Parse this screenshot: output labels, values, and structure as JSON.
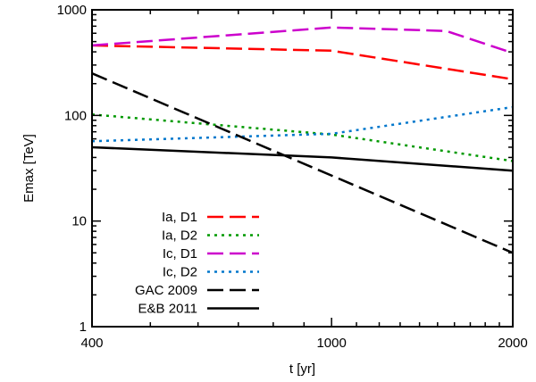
{
  "chart_data": {
    "type": "line",
    "xlabel": "t [yr]",
    "ylabel": "Emax [TeV]",
    "xscale": "log",
    "yscale": "log",
    "xlim": [
      400,
      2000
    ],
    "ylim": [
      1,
      1000
    ],
    "xticks": [
      {
        "value": 400,
        "label": "400"
      },
      {
        "value": 1000,
        "label": "1000"
      },
      {
        "value": 2000,
        "label": "2000"
      }
    ],
    "yticks": [
      {
        "value": 1,
        "label": "1"
      },
      {
        "value": 10,
        "label": "10"
      },
      {
        "value": 100,
        "label": "100"
      },
      {
        "value": 1000,
        "label": "1000"
      }
    ],
    "grid": false,
    "legend_position": "bottom-left",
    "series": [
      {
        "name": "Ia, D1",
        "color": "#ff0000",
        "dash": "long-dash",
        "x": [
          400,
          1000,
          2000
        ],
        "y": [
          460,
          410,
          220
        ]
      },
      {
        "name": "Ia, D2",
        "color": "#009900",
        "dash": "dotted",
        "x": [
          400,
          1000,
          2000
        ],
        "y": [
          102,
          66,
          37
        ]
      },
      {
        "name": "Ic, D1",
        "color": "#cc00cc",
        "dash": "long-dash",
        "x": [
          400,
          1000,
          1550,
          2000
        ],
        "y": [
          460,
          680,
          630,
          390
        ]
      },
      {
        "name": "Ic, D2",
        "color": "#0077cc",
        "dash": "dotted",
        "x": [
          400,
          1000,
          2000
        ],
        "y": [
          57,
          67,
          120
        ]
      },
      {
        "name": "GAC 2009",
        "color": "#000000",
        "dash": "long-dash",
        "x": [
          400,
          2000
        ],
        "y": [
          250,
          5
        ]
      },
      {
        "name": "E&B 2011",
        "color": "#000000",
        "dash": "solid",
        "x": [
          400,
          1000,
          2000
        ],
        "y": [
          50,
          40,
          30
        ]
      }
    ]
  }
}
